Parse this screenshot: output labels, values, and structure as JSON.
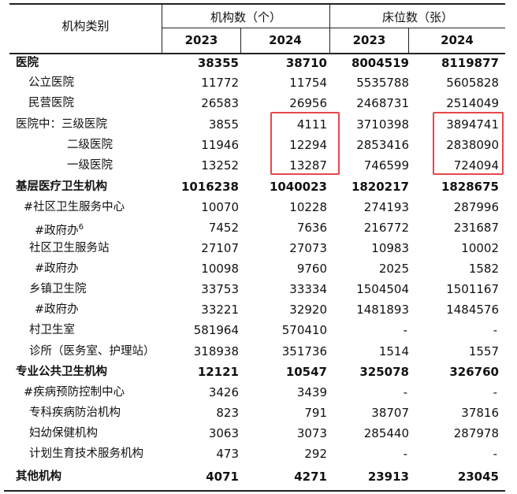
{
  "header": {
    "category": "机构类别",
    "institutions": "机构数（个）",
    "beds": "床位数（张）",
    "years": [
      "2023",
      "2024",
      "2023",
      "2024"
    ]
  },
  "rows": [
    {
      "label": "医院",
      "bold": true,
      "values": [
        "38355",
        "38710",
        "8004519",
        "8119877"
      ]
    },
    {
      "label": "公立医院",
      "values": [
        "11772",
        "11754",
        "5535788",
        "5605828"
      ]
    },
    {
      "label": "民营医院",
      "values": [
        "26583",
        "26956",
        "2468731",
        "2514049"
      ]
    },
    {
      "label": "医院中：三级医院",
      "values": [
        "3855",
        "4111",
        "3710398",
        "3894741"
      ]
    },
    {
      "label": "二级医院",
      "values": [
        "11946",
        "12294",
        "2853416",
        "2838090"
      ]
    },
    {
      "label": "一级医院",
      "values": [
        "13252",
        "13287",
        "746599",
        "724094"
      ]
    },
    {
      "label": "基层医疗卫生机构",
      "bold": true,
      "values": [
        "1016238",
        "1040023",
        "1820217",
        "1828675"
      ]
    },
    {
      "label": "#社区卫生服务中心",
      "values": [
        "10070",
        "10228",
        "274193",
        "287996"
      ]
    },
    {
      "label": "#政府办",
      "note": "6",
      "values": [
        "7452",
        "7636",
        "216772",
        "231687"
      ]
    },
    {
      "label": "社区卫生服务站",
      "values": [
        "27107",
        "27073",
        "10983",
        "10002"
      ]
    },
    {
      "label": "#政府办",
      "values": [
        "10098",
        "9760",
        "2025",
        "1582"
      ]
    },
    {
      "label": "乡镇卫生院",
      "values": [
        "33753",
        "33334",
        "1504504",
        "1501167"
      ]
    },
    {
      "label": "#政府办",
      "values": [
        "33221",
        "32920",
        "1481893",
        "1484576"
      ]
    },
    {
      "label": "村卫生室",
      "values": [
        "581964",
        "570410",
        "-",
        "-"
      ]
    },
    {
      "label": "诊所（医务室、护理站）",
      "values": [
        "318938",
        "351736",
        "1514",
        "1557"
      ]
    },
    {
      "label": "专业公共卫生机构",
      "bold": true,
      "values": [
        "12121",
        "10547",
        "325078",
        "326760"
      ]
    },
    {
      "label": "#疾病预防控制中心",
      "values": [
        "3426",
        "3439",
        "-",
        "-"
      ]
    },
    {
      "label": "专科疾病防治机构",
      "values": [
        "823",
        "791",
        "38707",
        "37816"
      ]
    },
    {
      "label": "妇幼保健机构",
      "values": [
        "3063",
        "3073",
        "285440",
        "287978"
      ]
    },
    {
      "label": "计划生育技术服务机构",
      "values": [
        "473",
        "292",
        "-",
        "-"
      ]
    },
    {
      "label": "其他机构",
      "bold": true,
      "values": [
        "4071",
        "4271",
        "23913",
        "23045"
      ]
    }
  ],
  "highlight_color": "#e8474c"
}
